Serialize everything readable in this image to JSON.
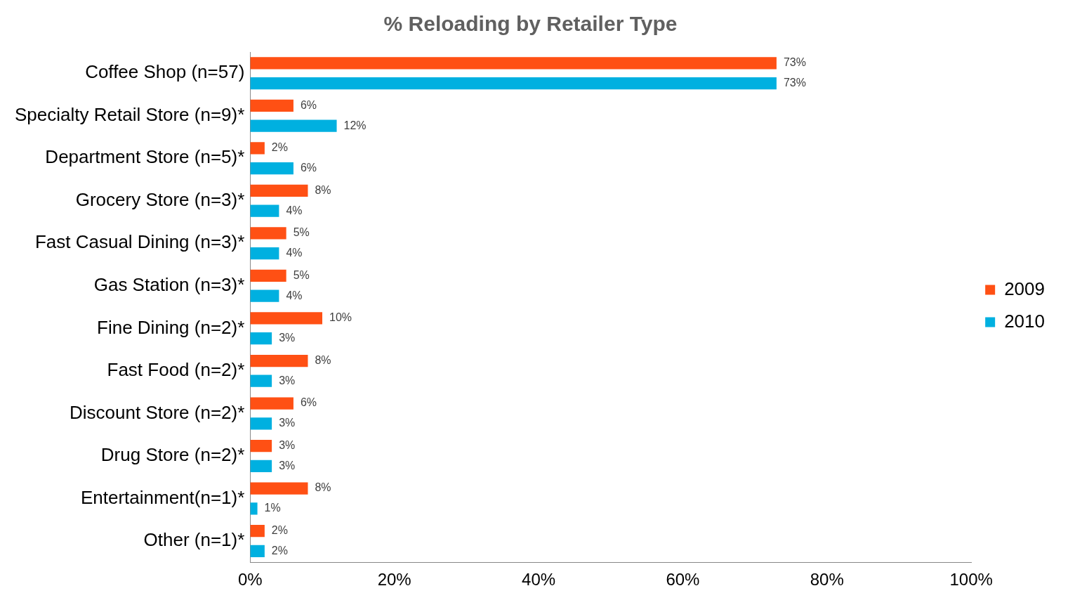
{
  "chart_data": {
    "type": "bar",
    "orientation": "horizontal",
    "title": "% Reloading by Retailer Type",
    "categories": [
      "Coffee Shop (n=57)",
      "Specialty Retail Store (n=9)*",
      "Department Store (n=5)*",
      "Grocery Store (n=3)*",
      "Fast Casual Dining (n=3)*",
      "Gas Station (n=3)*",
      "Fine Dining (n=2)*",
      "Fast Food (n=2)*",
      "Discount Store (n=2)*",
      "Drug Store (n=2)*",
      "Entertainment(n=1)*",
      "Other (n=1)*"
    ],
    "series": [
      {
        "name": "2009",
        "color": "#ff5014",
        "values": [
          73,
          6,
          2,
          8,
          5,
          5,
          10,
          8,
          6,
          3,
          8,
          2
        ],
        "value_labels": [
          "73%",
          "6%",
          "2%",
          "8%",
          "5%",
          "5%",
          "10%",
          "8%",
          "6%",
          "3%",
          "8%",
          "2%"
        ]
      },
      {
        "name": "2010",
        "color": "#00b0e0",
        "values": [
          73,
          12,
          6,
          4,
          4,
          4,
          3,
          3,
          3,
          3,
          1,
          2
        ],
        "value_labels": [
          "73%",
          "12%",
          "6%",
          "4%",
          "4%",
          "4%",
          "3%",
          "3%",
          "3%",
          "3%",
          "1%",
          "2%"
        ]
      }
    ],
    "xlim": [
      0,
      100
    ],
    "xticks": [
      {
        "value": 0,
        "label": "0%"
      },
      {
        "value": 20,
        "label": "20%"
      },
      {
        "value": 40,
        "label": "40%"
      },
      {
        "value": 60,
        "label": "60%"
      },
      {
        "value": 80,
        "label": "80%"
      },
      {
        "value": 100,
        "label": "100%"
      }
    ],
    "grid": false,
    "legend": "right"
  }
}
